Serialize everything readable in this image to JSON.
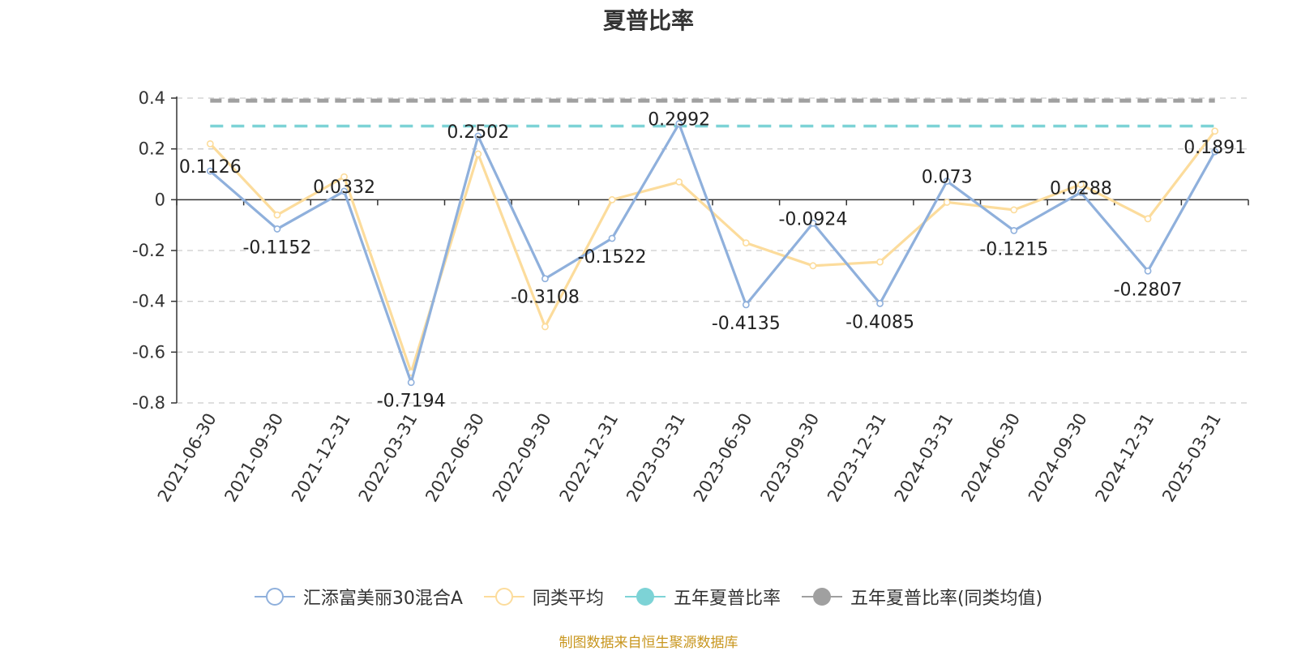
{
  "chart_data": {
    "type": "line",
    "title": "夏普比率",
    "categories": [
      "2021-06-30",
      "2021-09-30",
      "2021-12-31",
      "2022-03-31",
      "2022-06-30",
      "2022-09-30",
      "2022-12-31",
      "2023-03-31",
      "2023-06-30",
      "2023-09-30",
      "2023-12-31",
      "2024-03-31",
      "2024-06-30",
      "2024-09-30",
      "2024-12-31",
      "2025-03-31"
    ],
    "ylim": [
      -0.8,
      0.4
    ],
    "yticks": [
      "0.4",
      "0.2",
      "0",
      "-0.2",
      "-0.4",
      "-0.6",
      "-0.8"
    ],
    "ytick_values": [
      0.4,
      0.2,
      0,
      -0.2,
      -0.4,
      -0.6,
      -0.8
    ],
    "grid": true,
    "legend_position": "bottom",
    "series": [
      {
        "name": "汇添富美丽30混合A",
        "color": "#8fb0dc",
        "values": [
          0.1126,
          -0.1152,
          0.0332,
          -0.7194,
          0.2502,
          -0.3108,
          -0.1522,
          0.2992,
          -0.4135,
          -0.0924,
          -0.4085,
          0.073,
          -0.1215,
          0.0288,
          -0.2807,
          0.1891
        ],
        "labels": [
          "0.1126",
          "-0.1152",
          "0.0332",
          "-0.7194",
          "0.2502",
          "-0.3108",
          "-0.1522",
          "0.2992",
          "-0.4135",
          "-0.0924",
          "-0.4085",
          "0.073",
          "-0.1215",
          "0.0288",
          "-0.2807",
          "0.1891"
        ]
      },
      {
        "name": "同类平均",
        "color": "#fcdc9c",
        "values": [
          0.22,
          -0.06,
          0.09,
          -0.68,
          0.18,
          -0.5,
          0.0,
          0.07,
          -0.17,
          -0.26,
          -0.245,
          -0.01,
          -0.04,
          0.06,
          -0.075,
          0.27
        ]
      },
      {
        "name": "五年夏普比率",
        "color": "#7dd3d6",
        "constant": 0.29
      },
      {
        "name": "五年夏普比率(同类均值)",
        "color": "#a0a0a0",
        "constant": 0.39
      }
    ],
    "source": "制图数据来自恒生聚源数据库"
  }
}
